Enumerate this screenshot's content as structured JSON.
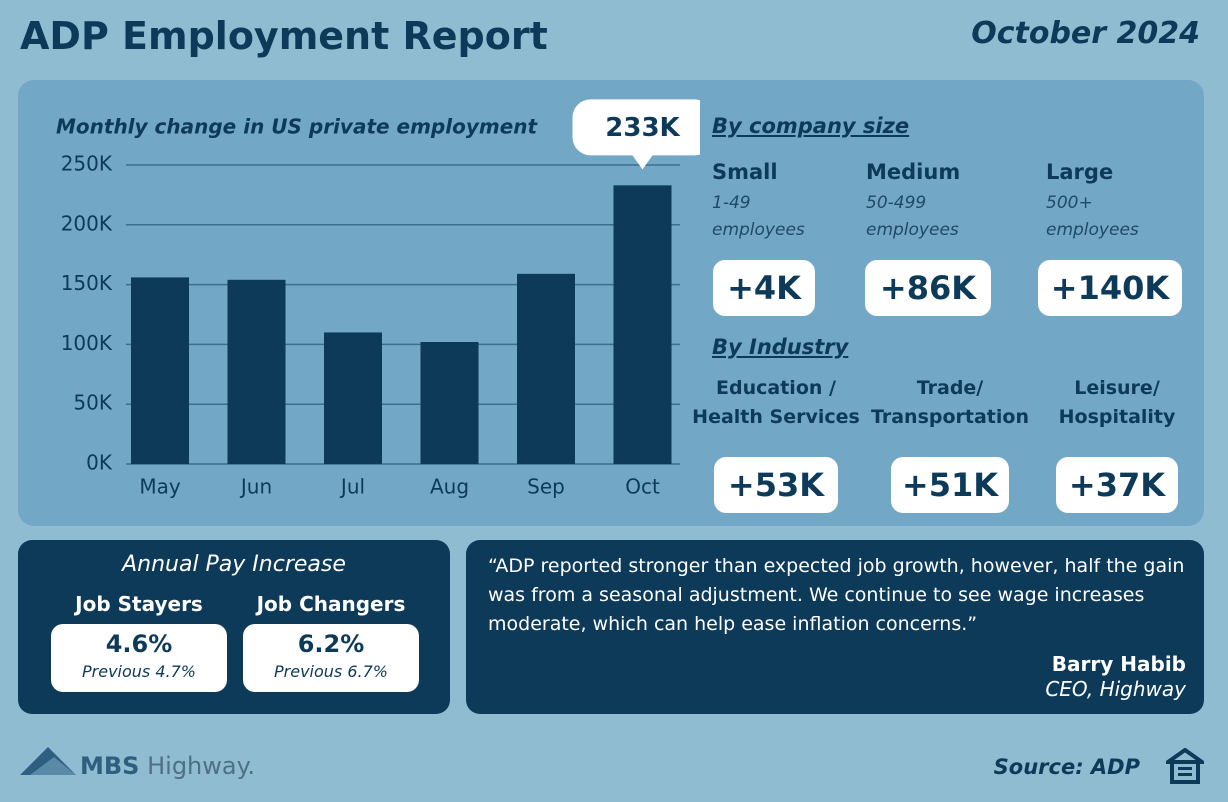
{
  "header": {
    "title": "ADP Employment Report",
    "date": "October 2024"
  },
  "chart_data": {
    "type": "bar",
    "title": "Monthly change in US private employment",
    "categories": [
      "May",
      "Jun",
      "Jul",
      "Aug",
      "Sep",
      "Oct"
    ],
    "values": [
      156000,
      154000,
      110000,
      102000,
      159000,
      233000
    ],
    "value_labels": [
      null,
      null,
      null,
      null,
      null,
      "233K"
    ],
    "color": "#0d3a59",
    "ylim": [
      0,
      250000
    ],
    "yticks": [
      {
        "value": 0,
        "label": "0K"
      },
      {
        "value": 50000,
        "label": "50K"
      },
      {
        "value": 100000,
        "label": "100K"
      },
      {
        "value": 150000,
        "label": "150K"
      },
      {
        "value": 200000,
        "label": "200K"
      },
      {
        "value": 250000,
        "label": "250K"
      }
    ],
    "grid": true
  },
  "company_size": {
    "heading": "By company size",
    "groups": [
      {
        "name": "Small",
        "range": "1-49 employees",
        "value": "+4K"
      },
      {
        "name": "Medium",
        "range": "50-499 employees",
        "value": "+86K"
      },
      {
        "name": "Large",
        "range": "500+ employees",
        "value": "+140K"
      }
    ]
  },
  "industry": {
    "heading": "By Industry",
    "groups": [
      {
        "name": "Education / Health Services",
        "value": "+53K"
      },
      {
        "name": "Trade/ Transportation",
        "value": "+51K"
      },
      {
        "name": "Leisure/ Hospitality",
        "value": "+37K"
      }
    ]
  },
  "pay": {
    "title": "Annual Pay Increase",
    "items": [
      {
        "name": "Job Stayers",
        "value": "4.6%",
        "previous": "Previous 4.7%"
      },
      {
        "name": "Job Changers",
        "value": "6.2%",
        "previous": "Previous 6.7%"
      }
    ]
  },
  "quote": {
    "text": "“ADP reported stronger than expected job growth, however, half the gain was from a seasonal adjustment. We continue to see wage increases moderate, which can help ease inflation concerns.”",
    "author": "Barry Habib",
    "role": "CEO, Highway"
  },
  "footer": {
    "brand": "MBS",
    "brand_sub": "Highway.",
    "source": "Source: ADP"
  }
}
